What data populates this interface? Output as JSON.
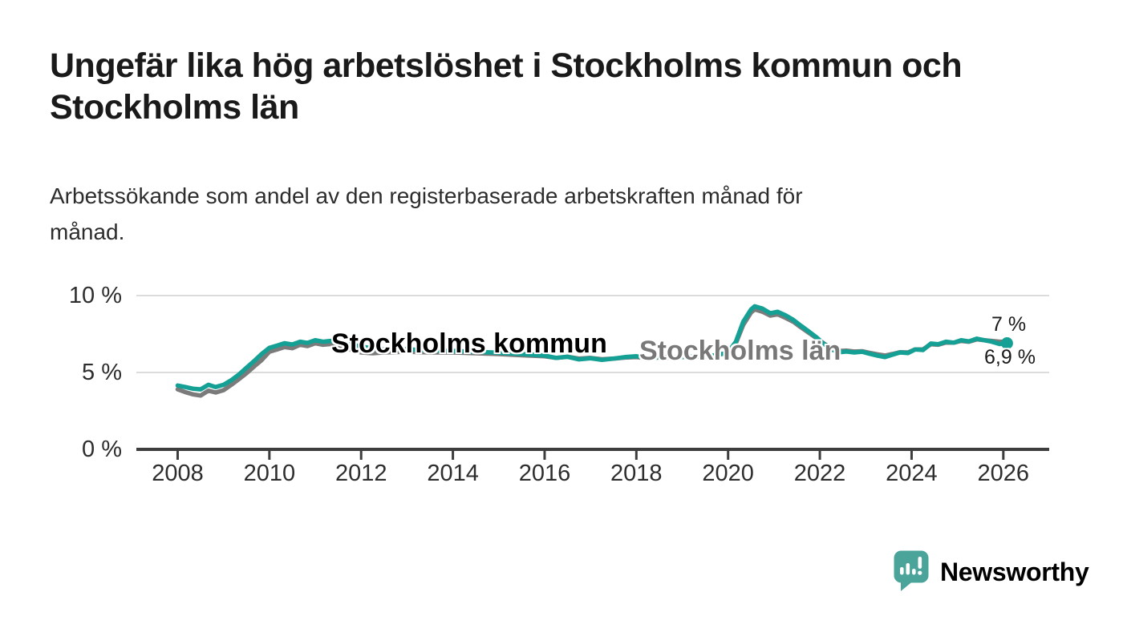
{
  "header": {
    "title_lines": [
      "Ungefär lika hög arbetslöshet i Stockholms kommun och",
      "Stockholms län"
    ],
    "subtitle_lines": [
      "Arbetssökande som andel av den registerbaserade arbetskraften månad för",
      "månad."
    ]
  },
  "chart_data": {
    "type": "line",
    "title": "Ungefär lika hög arbetslöshet i Stockholms kommun och Stockholms län",
    "subtitle": "Arbetssökande som andel av den registerbaserade arbetskraften månad för månad.",
    "unit": "%",
    "grid": "horizontal",
    "legend_position": "inline-labels",
    "xlim": [
      2007.1,
      2027.0
    ],
    "ylim": [
      0,
      10.5
    ],
    "y_ticks": [
      {
        "value": 0,
        "label": "0 %"
      },
      {
        "value": 5,
        "label": "5 %"
      },
      {
        "value": 10,
        "label": "10 %"
      }
    ],
    "x_ticks": [
      {
        "value": 2008,
        "label": "2008"
      },
      {
        "value": 2010,
        "label": "2010"
      },
      {
        "value": 2012,
        "label": "2012"
      },
      {
        "value": 2014,
        "label": "2014"
      },
      {
        "value": 2016,
        "label": "2016"
      },
      {
        "value": 2018,
        "label": "2018"
      },
      {
        "value": 2020,
        "label": "2020"
      },
      {
        "value": 2022,
        "label": "2022"
      },
      {
        "value": 2024,
        "label": "2024"
      },
      {
        "value": 2026,
        "label": "2026"
      }
    ],
    "colors": {
      "grid": "#dcdcdc",
      "axis": "#3d3d3d",
      "kommun": "#14a094",
      "lan": "#7b7b7b"
    },
    "x": [
      2008.0,
      2008.17,
      2008.33,
      2008.5,
      2008.67,
      2008.83,
      2009.0,
      2009.17,
      2009.33,
      2009.5,
      2009.67,
      2009.83,
      2010.0,
      2010.17,
      2010.33,
      2010.5,
      2010.67,
      2010.83,
      2011.0,
      2011.17,
      2011.33,
      2011.5,
      2011.67,
      2011.83,
      2012.0,
      2012.25,
      2012.5,
      2012.75,
      2013.0,
      2013.5,
      2014.0,
      2014.5,
      2015.0,
      2015.5,
      2016.0,
      2016.25,
      2016.5,
      2016.75,
      2017.0,
      2017.25,
      2017.5,
      2017.75,
      2018.0,
      2018.25,
      2018.5,
      2018.75,
      2019.0,
      2019.25,
      2019.5,
      2019.75,
      2020.0,
      2020.17,
      2020.33,
      2020.5,
      2020.58,
      2020.75,
      2020.92,
      2021.08,
      2021.25,
      2021.42,
      2021.58,
      2021.75,
      2021.92,
      2022.08,
      2022.25,
      2022.42,
      2022.58,
      2022.75,
      2022.92,
      2023.08,
      2023.25,
      2023.42,
      2023.58,
      2023.75,
      2023.92,
      2024.08,
      2024.25,
      2024.42,
      2024.58,
      2024.75,
      2024.92,
      2025.08,
      2025.25,
      2025.42,
      2025.58,
      2025.75,
      2025.92,
      2026.08
    ],
    "series": [
      {
        "id": "stockholms-lan",
        "name": "Stockholms län",
        "color": "#7b7b7b",
        "latest_label": "7 %",
        "latest_value": 7.0,
        "end_dot": false,
        "values": [
          3.9,
          3.72,
          3.58,
          3.5,
          3.82,
          3.7,
          3.85,
          4.2,
          4.55,
          4.95,
          5.4,
          5.8,
          6.35,
          6.5,
          6.65,
          6.58,
          6.8,
          6.72,
          6.9,
          6.8,
          6.85,
          6.72,
          6.58,
          6.42,
          6.3,
          6.25,
          6.3,
          6.33,
          6.35,
          6.3,
          6.3,
          6.25,
          6.2,
          6.12,
          6.05,
          5.95,
          6.02,
          5.9,
          5.95,
          5.86,
          5.9,
          5.97,
          6.0,
          5.93,
          5.98,
          5.96,
          6.0,
          6.02,
          6.05,
          6.12,
          6.3,
          6.9,
          8.1,
          8.9,
          9.1,
          8.95,
          8.7,
          8.78,
          8.55,
          8.3,
          7.95,
          7.6,
          7.25,
          6.9,
          6.55,
          6.4,
          6.42,
          6.36,
          6.38,
          6.28,
          6.18,
          6.1,
          6.2,
          6.32,
          6.3,
          6.5,
          6.5,
          6.84,
          6.8,
          6.95,
          6.94,
          7.05,
          7.0,
          7.15,
          7.1,
          7.05,
          7.0,
          7.0
        ]
      },
      {
        "id": "stockholms-kommun",
        "name": "Stockholms kommun",
        "color": "#14a094",
        "latest_label": "6,9 %",
        "latest_value": 6.9,
        "end_dot": true,
        "values": [
          4.15,
          4.05,
          3.95,
          3.9,
          4.2,
          4.05,
          4.2,
          4.5,
          4.85,
          5.3,
          5.75,
          6.2,
          6.6,
          6.75,
          6.9,
          6.82,
          7.0,
          6.92,
          7.1,
          7.0,
          7.05,
          6.95,
          6.85,
          6.78,
          6.7,
          6.55,
          6.5,
          6.52,
          6.5,
          6.45,
          6.4,
          6.35,
          6.28,
          6.2,
          6.1,
          5.95,
          6.02,
          5.85,
          5.92,
          5.82,
          5.9,
          6.0,
          6.05,
          5.95,
          6.0,
          5.98,
          6.0,
          6.02,
          6.05,
          6.12,
          6.3,
          7.0,
          8.3,
          9.1,
          9.3,
          9.15,
          8.85,
          8.95,
          8.72,
          8.42,
          8.05,
          7.68,
          7.3,
          6.88,
          6.5,
          6.32,
          6.36,
          6.3,
          6.35,
          6.22,
          6.1,
          6.0,
          6.15,
          6.3,
          6.26,
          6.5,
          6.46,
          6.88,
          6.84,
          7.0,
          6.94,
          7.1,
          7.02,
          7.2,
          7.1,
          7.0,
          6.85,
          6.9
        ]
      }
    ]
  },
  "branding": {
    "logo_text": "Newsworthy",
    "logo_color": "#4aa49a"
  }
}
